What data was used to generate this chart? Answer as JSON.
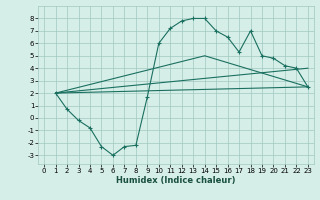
{
  "xlabel": "Humidex (Indice chaleur)",
  "bg_color": "#d6eee8",
  "grid_color": "#a0c8c0",
  "line_color": "#1a7060",
  "xlim": [
    -0.5,
    23.5
  ],
  "ylim": [
    -3.7,
    9.0
  ],
  "yticks": [
    -3,
    -2,
    -1,
    0,
    1,
    2,
    3,
    4,
    5,
    6,
    7,
    8
  ],
  "xticks": [
    0,
    1,
    2,
    3,
    4,
    5,
    6,
    7,
    8,
    9,
    10,
    11,
    12,
    13,
    14,
    15,
    16,
    17,
    18,
    19,
    20,
    21,
    22,
    23
  ],
  "series1_x": [
    1,
    2,
    3,
    4,
    5,
    6,
    7,
    8,
    9,
    10,
    11,
    12,
    13,
    14,
    15,
    16,
    17,
    18,
    19,
    20,
    21,
    22,
    23
  ],
  "series1_y": [
    2.0,
    0.7,
    -0.2,
    -0.8,
    -2.3,
    -3.0,
    -2.3,
    -2.2,
    1.7,
    6.0,
    7.2,
    7.8,
    8.0,
    8.0,
    7.0,
    6.5,
    5.3,
    7.0,
    5.0,
    4.8,
    4.2,
    4.0,
    2.5
  ],
  "series2_x": [
    1,
    23
  ],
  "series2_y": [
    2.0,
    4.0
  ],
  "series3_x": [
    1,
    14,
    23
  ],
  "series3_y": [
    2.0,
    5.0,
    2.5
  ],
  "series4_x": [
    1,
    23
  ],
  "series4_y": [
    2.0,
    2.5
  ],
  "xlabel_fontsize": 6.0,
  "tick_fontsize": 5.0
}
